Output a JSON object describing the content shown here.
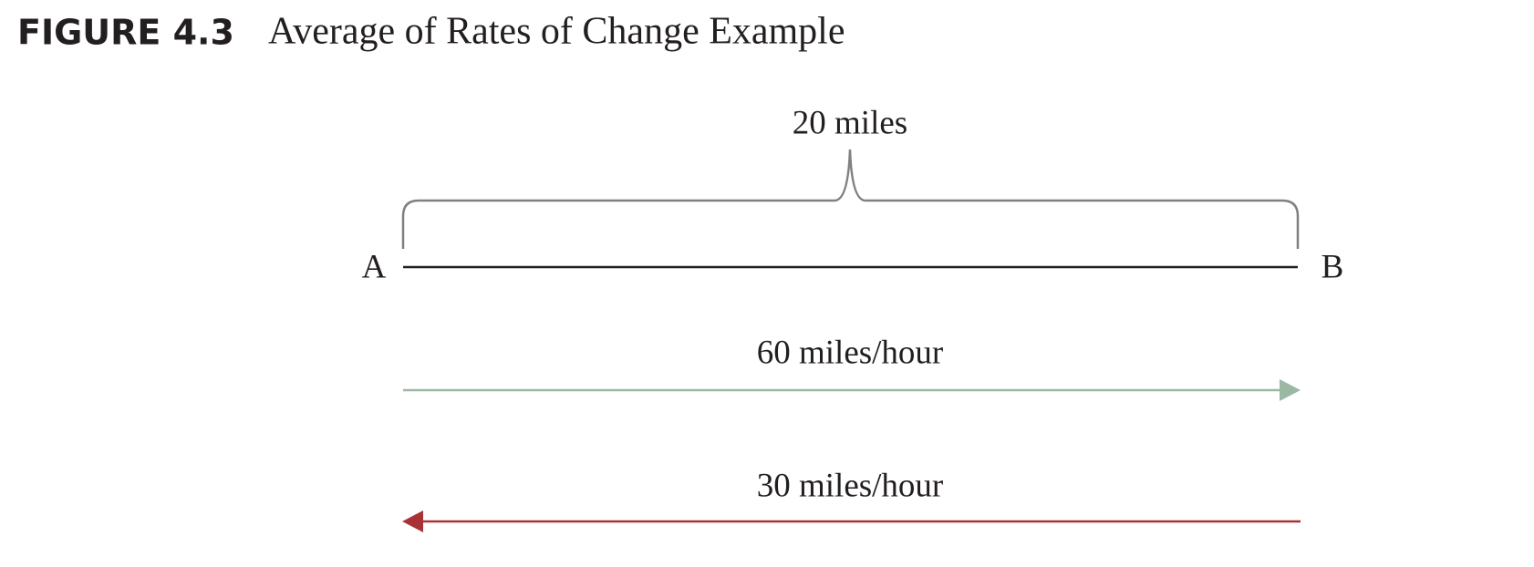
{
  "header": {
    "figure_label": "FIGURE 4.3",
    "title": "Average of Rates of Change Example"
  },
  "diagram": {
    "distance_label": "20 miles",
    "point_a": "A",
    "point_b": "B",
    "arrows": [
      {
        "label": "60 miles/hour"
      },
      {
        "label": "30 miles/hour"
      }
    ]
  }
}
